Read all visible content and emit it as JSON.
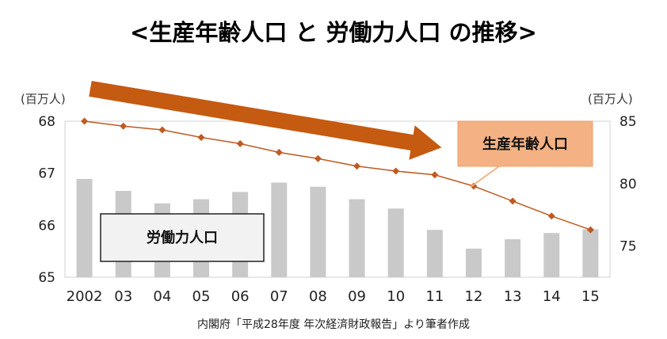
{
  "title": "<生産年齢人口 と 労働力人口 の推移>",
  "source": "内閣府「平成28年度 年次経済財政報告」より筆者作成",
  "colors": {
    "bars": "#c9c9c9",
    "line": "#c05a22",
    "marker": "#c05a22",
    "arrow": "#c55a11",
    "callout_fill": "#f4b183",
    "label_box_fill": "#f2f2f2"
  },
  "chart_data": {
    "type": "bar-line-combo",
    "categories": [
      "2002",
      "03",
      "04",
      "05",
      "06",
      "07",
      "08",
      "09",
      "10",
      "11",
      "12",
      "13",
      "14",
      "15"
    ],
    "left_axis": {
      "unit": "(百万人)",
      "min": 65,
      "max": 68,
      "ticks": [
        "65",
        "66",
        "67",
        "68"
      ]
    },
    "right_axis": {
      "unit": "(百万人)",
      "min": 72.5,
      "max": 85,
      "ticks": [
        "75",
        "80",
        "85"
      ]
    },
    "series": [
      {
        "name": "労働力人口",
        "type": "bar",
        "axis": "left",
        "values": [
          66.89,
          66.66,
          66.42,
          66.5,
          66.64,
          66.82,
          66.74,
          66.5,
          66.32,
          65.91,
          65.55,
          65.73,
          65.85,
          65.92
        ]
      },
      {
        "name": "生産年齢人口",
        "type": "line",
        "axis": "right",
        "values": [
          85.0,
          84.6,
          84.3,
          83.7,
          83.2,
          82.5,
          82.0,
          81.4,
          81.0,
          80.7,
          79.8,
          78.6,
          77.4,
          76.3
        ]
      }
    ],
    "annotations": {
      "line_label": "生産年齢人口",
      "bar_label": "労働力人口"
    }
  }
}
